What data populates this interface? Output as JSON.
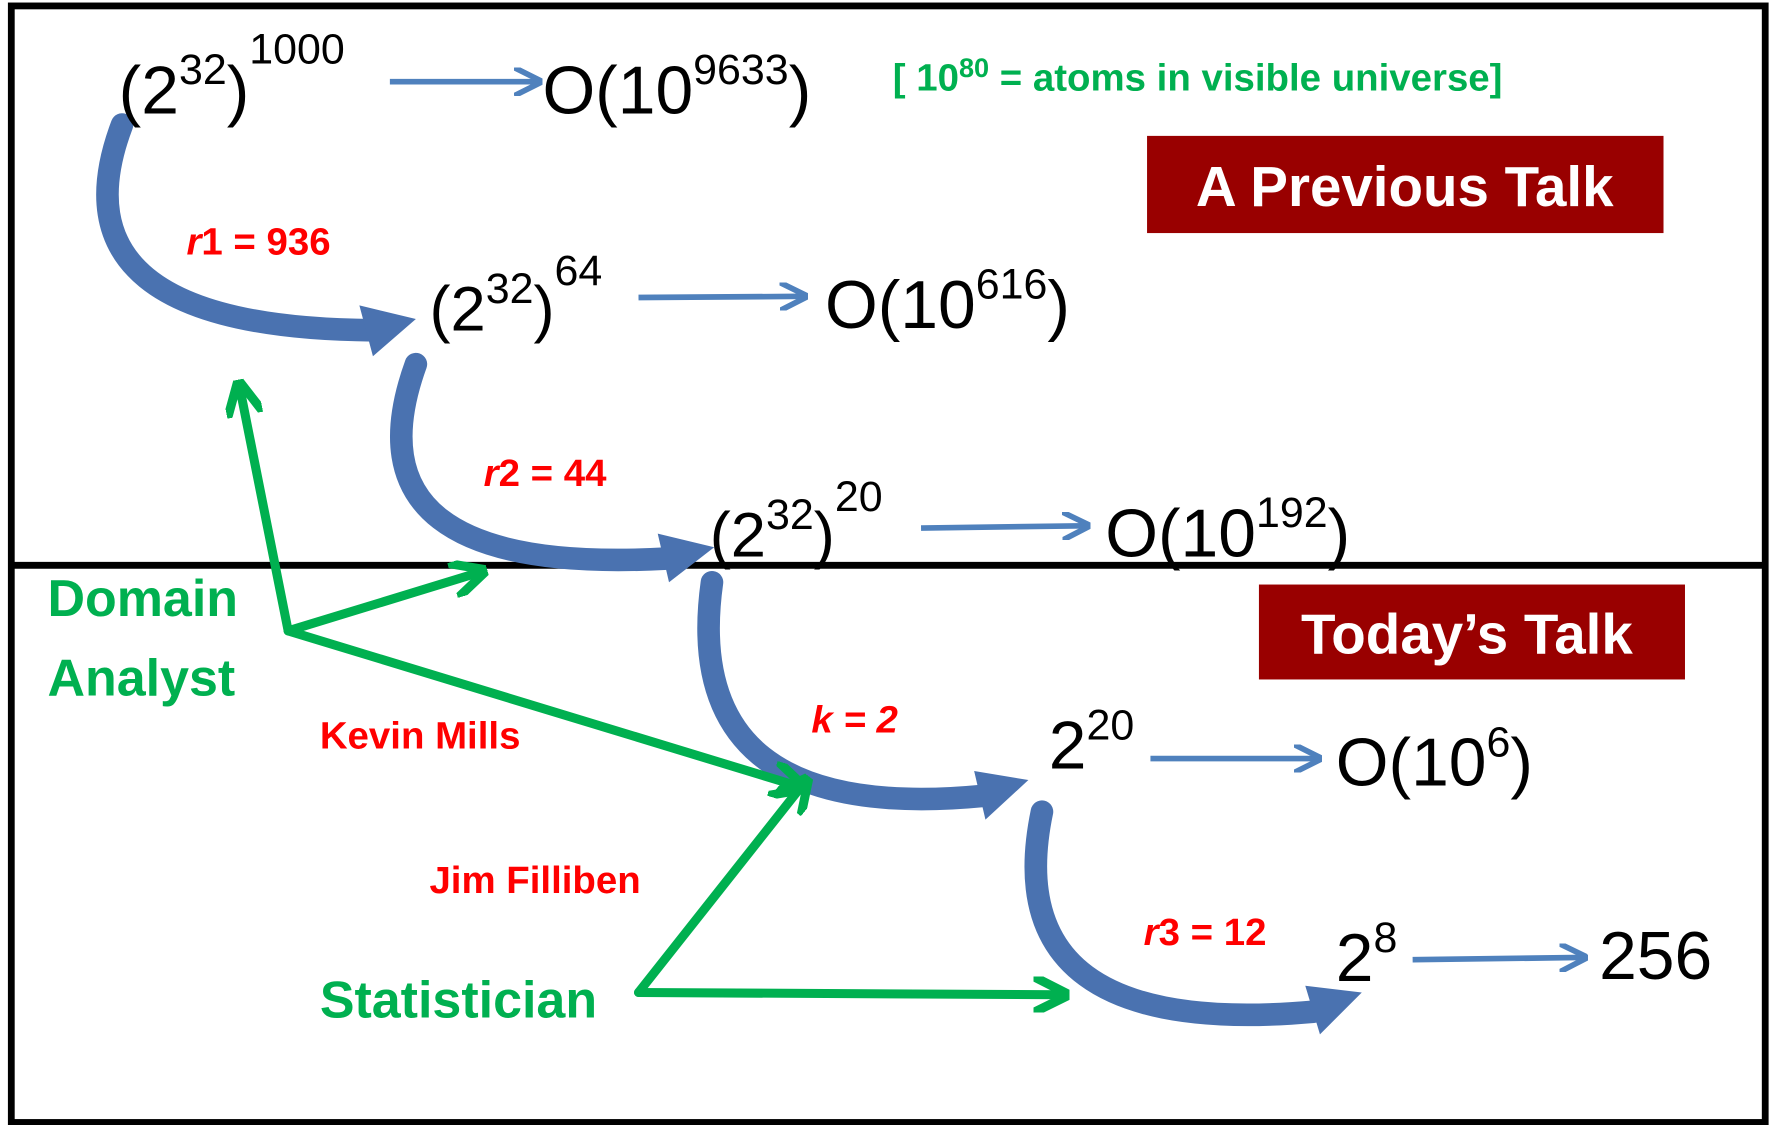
{
  "note": {
    "base": "[ 10",
    "exp": "80",
    "rest": " = atoms in visible universe]"
  },
  "badges": {
    "previous": "A Previous Talk",
    "today": "Today’s Talk"
  },
  "levels": [
    {
      "left": [
        "(2",
        "32",
        ")",
        "1000"
      ],
      "right": [
        "O(10",
        "9633",
        ")"
      ]
    },
    {
      "left": [
        "(2",
        "32",
        ")",
        "64"
      ],
      "right": [
        "O(10",
        "616",
        ")"
      ]
    },
    {
      "left": [
        "(2",
        "32",
        ")",
        "20"
      ],
      "right": [
        "O(10",
        "192",
        ")"
      ]
    },
    {
      "left": [
        "2",
        "20"
      ],
      "right": [
        "O(10",
        "6",
        ")"
      ]
    },
    {
      "left": [
        "2",
        "8"
      ],
      "right": [
        "256"
      ]
    }
  ],
  "reductions": [
    {
      "var": "r",
      "rest": "1 = 936"
    },
    {
      "var": "r",
      "rest": "2 = 44"
    },
    {
      "var": "k = 2"
    },
    {
      "var": "r",
      "rest": "3 = 12"
    }
  ],
  "people": {
    "analyst": [
      "Domain",
      "Analyst"
    ],
    "kevin": "Kevin Mills",
    "jim": "Jim Filliben",
    "statistician": "Statistician"
  }
}
